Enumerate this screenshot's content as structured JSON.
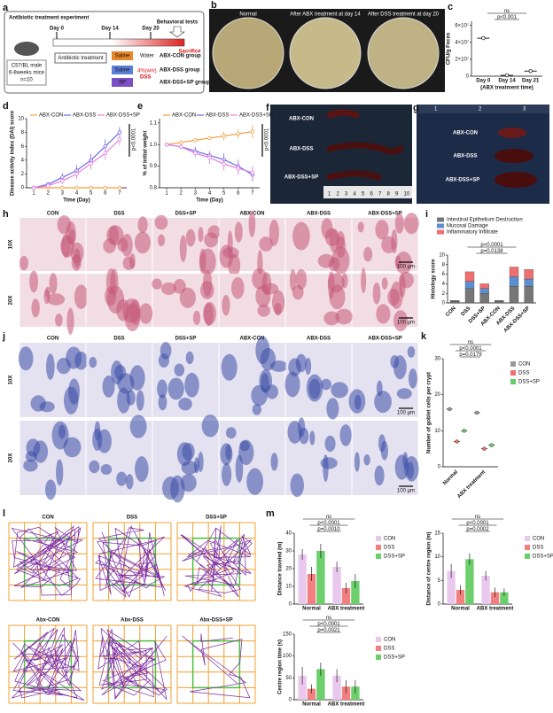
{
  "letters": [
    "a",
    "b",
    "c",
    "d",
    "e",
    "f",
    "g",
    "h",
    "i",
    "j",
    "k",
    "l",
    "m"
  ],
  "schematic": {
    "title": "Antibiotic treatment experiment",
    "days": [
      "Day 0",
      "Day 14",
      "Day 20"
    ],
    "tests": "Behavioral tests",
    "sacrifice": "Sacrifice",
    "mice": [
      "C57/BL male",
      "6-8weeks mice",
      "n=10"
    ],
    "abx": "Antibiotic treatment",
    "saline": [
      "Saline",
      "Saline"
    ],
    "sp": "SP",
    "water": "Water",
    "dss": [
      "4%(w/v)",
      "DSS"
    ],
    "groups": [
      "ABX-CON group",
      "ABX-DSS group",
      "ABX-DSS+SP group"
    ]
  },
  "plates": {
    "labels": [
      "Normal",
      "After ABX treatment at day 14",
      "After DSS treatment at day 20"
    ]
  },
  "colon": {
    "labels": [
      "ABX-CON",
      "ABX-DSS",
      "ABX-DSS+SP"
    ],
    "ruler": [
      "1",
      "2",
      "3",
      "4",
      "5",
      "6",
      "7",
      "8",
      "9",
      "10"
    ]
  },
  "spleen": {
    "labels": [
      "ABX-CON",
      "ABX-DSS",
      "ABX-DSS+SP"
    ],
    "ruler": [
      "1",
      "2",
      "3"
    ]
  },
  "he": {
    "columns": [
      "CON",
      "DSS",
      "DSS+SP",
      "ABX-CON",
      "ABX-DSS",
      "ABX-DSS+SP"
    ],
    "rows": [
      "10X",
      "20X"
    ],
    "scale": "100 μm"
  },
  "ab": {
    "columns": [
      "CON",
      "DSS",
      "DSS+SP",
      "ABX-CON",
      "ABX-DSS",
      "ABX-DSS+SP"
    ],
    "rows": [
      "10X",
      "20X"
    ],
    "scale": "100 μm"
  },
  "maze": {
    "labels": [
      "CON",
      "DSS",
      "DSS+SP",
      "Abx-CON",
      "Abx-DSS",
      "Abx-DSS+SP"
    ]
  },
  "chart_data": [
    {
      "type": "dot",
      "ylabel": "CFU/g Feces",
      "xlabel": "(ABX treatment time)",
      "categories": [
        "Day 0",
        "Day 14",
        "Day 21"
      ],
      "values": [
        45000000,
        1000000,
        6000000
      ],
      "color": "#222222",
      "ylim": [
        0,
        65000000
      ],
      "yticks": [
        0,
        {
          "value": 20000000,
          "label": "2×10⁷"
        },
        {
          "value": 40000000,
          "label": "4×10⁷"
        },
        {
          "value": 60000000,
          "label": "6×10⁷"
        }
      ],
      "annotations": [
        "p<0.001",
        "ns"
      ]
    },
    {
      "type": "line",
      "ylabel": "Disease activity index (DAI) score",
      "xlabel": "Time (Day)",
      "x": [
        1,
        2,
        3,
        4,
        5,
        6,
        7
      ],
      "xlim": [
        0.5,
        7.5
      ],
      "xticks": [
        1,
        2,
        3,
        4,
        5,
        6,
        7
      ],
      "ylim": [
        0,
        10
      ],
      "yticks": [
        0,
        2,
        4,
        6,
        8,
        10
      ],
      "legend": "top",
      "annotations": [
        "p<0.0001"
      ],
      "series": [
        {
          "name": "ABX-CON",
          "color": "#f0a040",
          "values": [
            0,
            0,
            0,
            0,
            0,
            0,
            0
          ],
          "errors": [
            0,
            0,
            0,
            0,
            0,
            0,
            0
          ]
        },
        {
          "name": "ABX-DSS",
          "color": "#6a6ae8",
          "values": [
            0,
            0.5,
            1.5,
            2.5,
            4,
            6,
            8
          ],
          "errors": [
            0,
            0.3,
            0.6,
            0.8,
            0.9,
            1,
            0.8
          ]
        },
        {
          "name": "ABX-DSS+SP",
          "color": "#e67ee0",
          "values": [
            0,
            0.3,
            1,
            2,
            3.5,
            5,
            7
          ],
          "errors": [
            0,
            0.3,
            0.5,
            0.7,
            0.9,
            1,
            0.9
          ]
        }
      ]
    },
    {
      "type": "line",
      "ylabel": "% of initial weight",
      "xlabel": "Time (Day)",
      "x": [
        1,
        2,
        3,
        4,
        5,
        6,
        7
      ],
      "xlim": [
        0.5,
        7.5
      ],
      "xticks": [
        1,
        2,
        3,
        4,
        5,
        6,
        7
      ],
      "ylim": [
        0.8,
        1.12
      ],
      "yticks": [
        0.8,
        0.9,
        {
          "value": 1,
          "label": "1.0"
        },
        1.1
      ],
      "legend": "top",
      "annotations": [
        "p<0.0001"
      ],
      "series": [
        {
          "name": "ABX-CON",
          "color": "#f0a040",
          "values": [
            1,
            1.01,
            1.02,
            1.03,
            1.04,
            1.05,
            1.06
          ],
          "errors": [
            0,
            0.01,
            0.01,
            0.01,
            0.02,
            0.02,
            0.03
          ]
        },
        {
          "name": "ABX-DSS",
          "color": "#6a6ae8",
          "values": [
            1,
            0.99,
            0.97,
            0.95,
            0.93,
            0.9,
            0.86
          ],
          "errors": [
            0,
            0.01,
            0.02,
            0.02,
            0.03,
            0.03,
            0.03
          ]
        },
        {
          "name": "ABX-DSS+SP",
          "color": "#e67ee0",
          "values": [
            1,
            0.99,
            0.96,
            0.94,
            0.91,
            0.89,
            0.87
          ],
          "errors": [
            0,
            0.01,
            0.02,
            0.03,
            0.03,
            0.03,
            0.03
          ]
        }
      ]
    },
    {
      "type": "stacked",
      "ylabel": "Histology score",
      "categories": [
        "CON",
        "DSS",
        "DSS+SP",
        "ABX-CON",
        "ABX-DSS",
        "ABX-DSS+SP"
      ],
      "ylim": [
        0,
        10
      ],
      "yticks": [
        0,
        2,
        4,
        6,
        8,
        10
      ],
      "legend": "top",
      "annotations": [
        "p=0.0138",
        "p<0.0001"
      ],
      "series": [
        {
          "name": "Intestinal Epithelium Destruction",
          "color": "#777777",
          "values": [
            0.3,
            3,
            2,
            0.3,
            3.5,
            3.5
          ]
        },
        {
          "name": "Mucosal Damage",
          "color": "#5b8fd0",
          "values": [
            0.1,
            1.5,
            1,
            0.1,
            2,
            1.5
          ]
        },
        {
          "name": "Inflammatory Infiltrate",
          "color": "#f07070",
          "values": [
            0.1,
            2,
            1,
            0.1,
            2,
            2
          ]
        }
      ]
    },
    {
      "type": "dotgroup",
      "ylabel": "Number of goblet cells per crypt",
      "categories": [
        "Normal",
        "ABX treatment"
      ],
      "ylim": [
        0,
        30
      ],
      "yticks": [
        0,
        10,
        20,
        30
      ],
      "legend": "right",
      "annotations": [
        "p=0.0179",
        "p<0.0001",
        "ns"
      ],
      "series": [
        {
          "name": "CON",
          "color": "#999999",
          "values": [
            16,
            15
          ]
        },
        {
          "name": "DSS",
          "color": "#f07070",
          "values": [
            7,
            5
          ]
        },
        {
          "name": "DSS+SP",
          "color": "#66cc66",
          "values": [
            10,
            6
          ]
        }
      ]
    },
    {
      "type": "bar",
      "ylabel": "Distance traveled (m)",
      "categories": [
        "Normal",
        "ABX treatment"
      ],
      "ylim": [
        0,
        40
      ],
      "yticks": [
        0,
        10,
        20,
        30,
        40
      ],
      "legend": "right",
      "annotations": [
        "p=0.0010",
        "p<0.0001",
        "ns"
      ],
      "series": [
        {
          "name": "CON",
          "color": "#e9c8ee",
          "values": [
            28,
            21
          ],
          "errors": [
            3,
            3
          ]
        },
        {
          "name": "DSS",
          "color": "#f28080",
          "values": [
            17,
            9
          ],
          "errors": [
            4,
            3
          ]
        },
        {
          "name": "DSS+SP",
          "color": "#6ccf6c",
          "values": [
            30,
            13
          ],
          "errors": [
            4,
            4
          ]
        }
      ]
    },
    {
      "type": "bar",
      "ylabel": "Distance of centre region (m)",
      "categories": [
        "Normal",
        "ABX treatment"
      ],
      "ylim": [
        0,
        15
      ],
      "yticks": [
        0,
        5,
        10,
        15
      ],
      "legend": "right",
      "annotations": [
        "p=0.0002",
        "p<0.0001",
        "ns"
      ],
      "series": [
        {
          "name": "CON",
          "color": "#e9c8ee",
          "values": [
            7,
            6
          ],
          "errors": [
            1.5,
            1
          ]
        },
        {
          "name": "DSS",
          "color": "#f28080",
          "values": [
            3,
            2.5
          ],
          "errors": [
            1,
            1
          ]
        },
        {
          "name": "DSS+SP",
          "color": "#6ccf6c",
          "values": [
            9.5,
            2.5
          ],
          "errors": [
            1.2,
            0.8
          ]
        }
      ]
    },
    {
      "type": "bar",
      "ylabel": "Centre region time (s)",
      "categories": [
        "Normal",
        "ABX treatment"
      ],
      "ylim": [
        0,
        150
      ],
      "yticks": [
        0,
        50,
        100,
        150
      ],
      "legend": "right",
      "annotations": [
        "p=0.0021",
        "p<0.0001",
        "ns"
      ],
      "series": [
        {
          "name": "CON",
          "color": "#e9c8ee",
          "values": [
            55,
            55
          ],
          "errors": [
            20,
            15
          ]
        },
        {
          "name": "DSS",
          "color": "#f28080",
          "values": [
            25,
            30
          ],
          "errors": [
            10,
            15
          ]
        },
        {
          "name": "DSS+SP",
          "color": "#6ccf6c",
          "values": [
            70,
            30
          ],
          "errors": [
            15,
            15
          ]
        }
      ]
    }
  ]
}
